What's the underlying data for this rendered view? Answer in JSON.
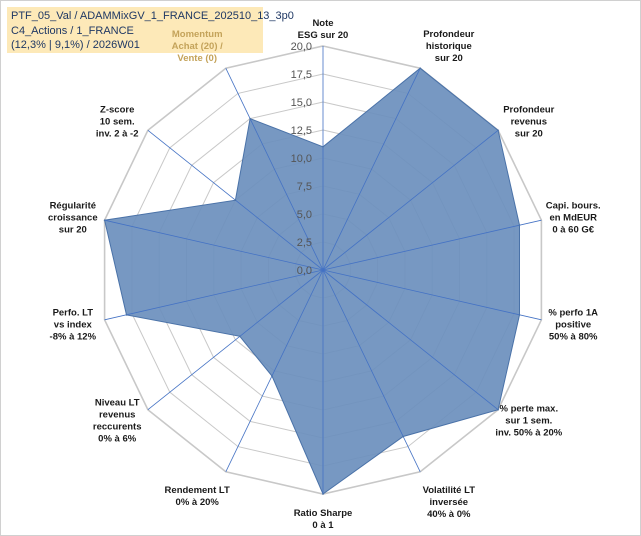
{
  "header": {
    "line1": "PTF_05_Val / ADAMMixGV_1_FRANCE_202510_13_3p0",
    "line2": "C4_Actions / 1_FRANCE",
    "line3": "(12,3% | 9,1%) / 2026W01"
  },
  "colors": {
    "series_fill": "#6b8fbd",
    "series_stroke": "#4a72a8",
    "grid": "#c8c8c8",
    "spokes": "#4472c4",
    "highlight_label": "#c4a35a",
    "header_bg": "#fde9b8"
  },
  "chart_data": {
    "type": "radar",
    "rmax": 20,
    "ticks": [
      "0,0",
      "2,5",
      "5,0",
      "7,5",
      "10,0",
      "12,5",
      "15,0",
      "17,5",
      "20,0"
    ],
    "categories": [
      {
        "lines": [
          "Note",
          "ESG sur 20"
        ],
        "highlight": false
      },
      {
        "lines": [
          "Profondeur",
          "historique",
          "sur 20"
        ],
        "highlight": false
      },
      {
        "lines": [
          "Profondeur",
          "revenus",
          "sur 20"
        ],
        "highlight": false
      },
      {
        "lines": [
          "Capi. bours.",
          "en MdEUR",
          "0 à 60 G€"
        ],
        "highlight": false
      },
      {
        "lines": [
          "% perfo 1A",
          "positive",
          "50% à 80%"
        ],
        "highlight": false
      },
      {
        "lines": [
          "% perte max.",
          "sur 1 sem.",
          "inv. 50% à 20%"
        ],
        "highlight": false
      },
      {
        "lines": [
          "Volatilité LT",
          "inversée",
          "40% à 0%"
        ],
        "highlight": false
      },
      {
        "lines": [
          "Ratio Sharpe",
          "0 à 1"
        ],
        "highlight": false
      },
      {
        "lines": [
          "Rendement LT",
          "0% à 20%"
        ],
        "highlight": false
      },
      {
        "lines": [
          "Niveau LT",
          "revenus",
          "reccurents",
          "0% à 6%"
        ],
        "highlight": false
      },
      {
        "lines": [
          "Perfo. LT",
          "vs index",
          "-8% à 12%"
        ],
        "highlight": false
      },
      {
        "lines": [
          "Régularité",
          "croissance",
          "sur 20"
        ],
        "highlight": false
      },
      {
        "lines": [
          "Z-score",
          "10 sem.",
          "inv. 2 à -2"
        ],
        "highlight": false
      },
      {
        "lines": [
          "Momentum",
          "Achat (20) /",
          "Vente (0)"
        ],
        "highlight": true
      }
    ],
    "series": [
      {
        "values": [
          11.0,
          20.0,
          20.0,
          18.0,
          18.0,
          20.0,
          16.5,
          20.0,
          10.5,
          9.5,
          18.0,
          20.0,
          10.0,
          15.0
        ]
      }
    ]
  }
}
